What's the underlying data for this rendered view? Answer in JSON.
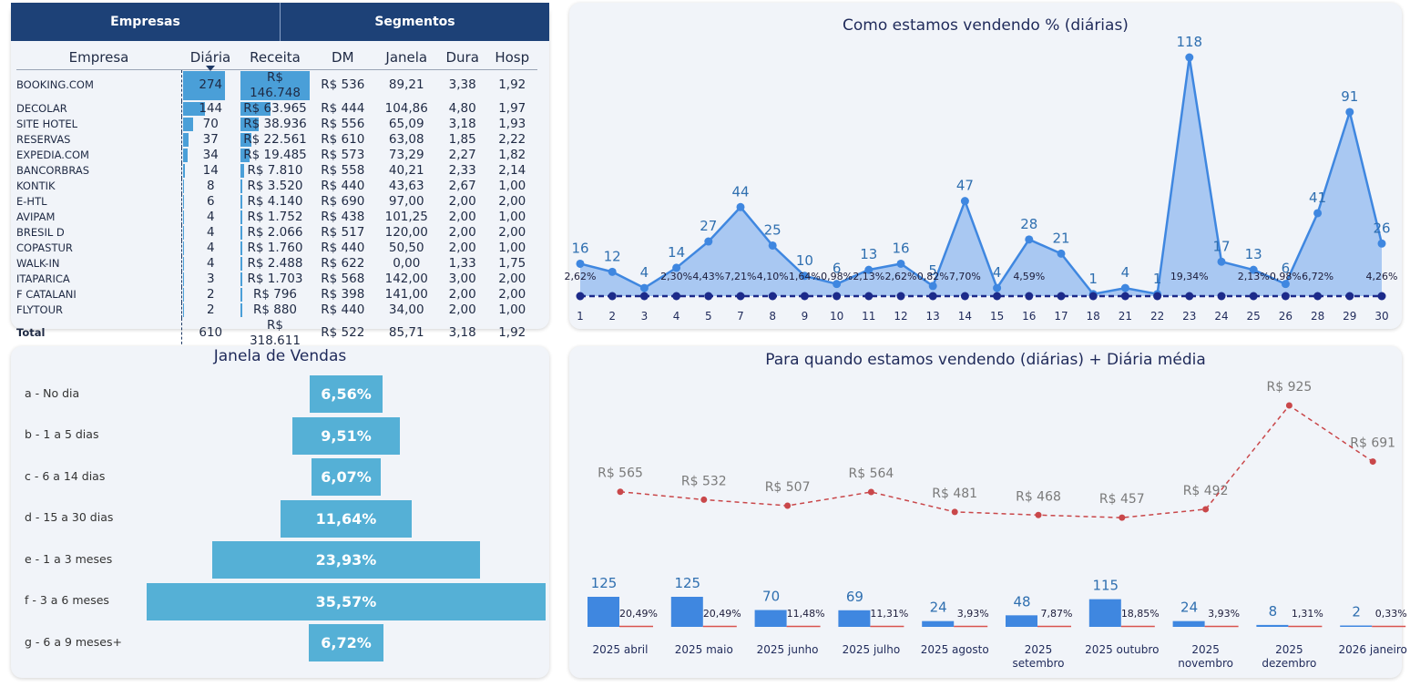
{
  "tabs": [
    "Empresas",
    "Segmentos"
  ],
  "table": {
    "columns": [
      "Empresa",
      "Diária",
      "Receita",
      "DM",
      "Janela",
      "Dura",
      "Hosp"
    ],
    "rows": [
      {
        "empresa": "BOOKING.COM",
        "diaria": "274",
        "receita": "R$ 146.748",
        "dm": "R$ 536",
        "janela": "89,21",
        "dura": "3,38",
        "hosp": "1,92",
        "diaria_value": 274,
        "receita_value": 146748
      },
      {
        "empresa": "DECOLAR",
        "diaria": "144",
        "receita": "R$ 63.965",
        "dm": "R$ 444",
        "janela": "104,86",
        "dura": "4,80",
        "hosp": "1,97",
        "diaria_value": 144,
        "receita_value": 63965
      },
      {
        "empresa": "SITE HOTEL",
        "diaria": "70",
        "receita": "R$ 38.936",
        "dm": "R$ 556",
        "janela": "65,09",
        "dura": "3,18",
        "hosp": "1,93",
        "diaria_value": 70,
        "receita_value": 38936
      },
      {
        "empresa": "RESERVAS",
        "diaria": "37",
        "receita": "R$ 22.561",
        "dm": "R$ 610",
        "janela": "63,08",
        "dura": "1,85",
        "hosp": "2,22",
        "diaria_value": 37,
        "receita_value": 22561
      },
      {
        "empresa": "EXPEDIA.COM",
        "diaria": "34",
        "receita": "R$ 19.485",
        "dm": "R$ 573",
        "janela": "73,29",
        "dura": "2,27",
        "hosp": "1,82",
        "diaria_value": 34,
        "receita_value": 19485
      },
      {
        "empresa": "BANCORBRAS",
        "diaria": "14",
        "receita": "R$ 7.810",
        "dm": "R$ 558",
        "janela": "40,21",
        "dura": "2,33",
        "hosp": "2,14",
        "diaria_value": 14,
        "receita_value": 7810
      },
      {
        "empresa": "KONTIK",
        "diaria": "8",
        "receita": "R$ 3.520",
        "dm": "R$ 440",
        "janela": "43,63",
        "dura": "2,67",
        "hosp": "1,00",
        "diaria_value": 8,
        "receita_value": 3520
      },
      {
        "empresa": "E-HTL",
        "diaria": "6",
        "receita": "R$ 4.140",
        "dm": "R$ 690",
        "janela": "97,00",
        "dura": "2,00",
        "hosp": "2,00",
        "diaria_value": 6,
        "receita_value": 4140
      },
      {
        "empresa": "AVIPAM",
        "diaria": "4",
        "receita": "R$ 1.752",
        "dm": "R$ 438",
        "janela": "101,25",
        "dura": "2,00",
        "hosp": "1,00",
        "diaria_value": 4,
        "receita_value": 1752
      },
      {
        "empresa": "BRESIL D",
        "diaria": "4",
        "receita": "R$ 2.066",
        "dm": "R$ 517",
        "janela": "120,00",
        "dura": "2,00",
        "hosp": "2,00",
        "diaria_value": 4,
        "receita_value": 2066
      },
      {
        "empresa": "COPASTUR",
        "diaria": "4",
        "receita": "R$ 1.760",
        "dm": "R$ 440",
        "janela": "50,50",
        "dura": "2,00",
        "hosp": "1,00",
        "diaria_value": 4,
        "receita_value": 1760
      },
      {
        "empresa": "WALK-IN",
        "diaria": "4",
        "receita": "R$ 2.488",
        "dm": "R$ 622",
        "janela": "0,00",
        "dura": "1,33",
        "hosp": "1,75",
        "diaria_value": 4,
        "receita_value": 2488
      },
      {
        "empresa": "ITAPARICA",
        "diaria": "3",
        "receita": "R$ 1.703",
        "dm": "R$ 568",
        "janela": "142,00",
        "dura": "3,00",
        "hosp": "2,00",
        "diaria_value": 3,
        "receita_value": 1703
      },
      {
        "empresa": "F CATALANI",
        "diaria": "2",
        "receita": "R$ 796",
        "dm": "R$ 398",
        "janela": "141,00",
        "dura": "2,00",
        "hosp": "2,00",
        "diaria_value": 2,
        "receita_value": 796
      },
      {
        "empresa": "FLYTOUR",
        "diaria": "2",
        "receita": "R$ 880",
        "dm": "R$ 440",
        "janela": "34,00",
        "dura": "2,00",
        "hosp": "1,00",
        "diaria_value": 2,
        "receita_value": 880
      }
    ],
    "total": {
      "empresa": "Total",
      "diaria": "610",
      "receita": "R$ 318.611",
      "dm": "R$ 522",
      "janela": "85,71",
      "dura": "3,18",
      "hosp": "1,92"
    }
  },
  "chart_data": [
    {
      "type": "area",
      "title": "Como estamos vendendo % (diárias)",
      "categories": [
        "1",
        "2",
        "3",
        "4",
        "5",
        "7",
        "8",
        "9",
        "10",
        "11",
        "12",
        "13",
        "14",
        "15",
        "16",
        "17",
        "18",
        "21",
        "22",
        "23",
        "24",
        "25",
        "26",
        "28",
        "29",
        "30"
      ],
      "series": [
        {
          "values": [
            16,
            12,
            4,
            14,
            27,
            44,
            25,
            10,
            6,
            13,
            16,
            5,
            47,
            4,
            28,
            21,
            1,
            4,
            1,
            118,
            17,
            13,
            6,
            41,
            91,
            26
          ],
          "labels": [
            "16",
            "12",
            "4",
            "14",
            "27",
            "44",
            "25",
            "10",
            "6",
            "13",
            "16",
            "5",
            "47",
            "4",
            "28",
            "21",
            "1",
            "4",
            "1",
            "118",
            "17",
            "13",
            "6",
            "41",
            "91",
            "26"
          ],
          "color": "#3f87e0"
        },
        {
          "values": [
            2.62,
            null,
            null,
            2.3,
            4.43,
            7.21,
            4.1,
            1.64,
            0.98,
            2.13,
            2.62,
            0.82,
            7.7,
            null,
            4.59,
            null,
            null,
            null,
            null,
            19.34,
            null,
            2.13,
            0.98,
            6.72,
            null,
            4.26
          ],
          "labels": [
            "2,62%",
            "",
            "",
            "2,30%",
            "4,43%",
            "7,21%",
            "4,10%",
            "1,64%",
            "0,98%",
            "2,13%",
            "2,62%",
            "0,82%",
            "7,70%",
            "",
            "4,59%",
            "",
            "",
            "",
            "",
            "19,34%",
            "",
            "2,13%",
            "0,98%",
            "6,72%",
            "",
            "4,26%"
          ],
          "color": "#1c2a8a"
        }
      ],
      "ylim": [
        0,
        118
      ]
    },
    {
      "type": "bar",
      "title": "Janela de Vendas",
      "categories": [
        "a - No dia",
        "b - 1 a 5 dias",
        "c - 6 a 14 dias",
        "d - 15 a 30 dias",
        "e - 1 a 3 meses",
        "f - 3 a 6 meses",
        "g - 6 a 9 meses+"
      ],
      "values": [
        6.56,
        9.51,
        6.07,
        11.64,
        23.93,
        35.57,
        6.72
      ],
      "labels": [
        "6,56%",
        "9,51%",
        "6,07%",
        "11,64%",
        "23,93%",
        "35,57%",
        "6,72%"
      ],
      "color": "#55b0d6"
    },
    {
      "type": "bar",
      "title": "Para quando estamos vendendo (diárias) + Diária média",
      "categories": [
        "2025 abril",
        "2025 maio",
        "2025 junho",
        "2025 julho",
        "2025 agosto",
        "2025 setembro",
        "2025 outubro",
        "2025 novembro",
        "2025 dezembro",
        "2026 janeiro"
      ],
      "series": [
        {
          "values": [
            125,
            125,
            70,
            69,
            24,
            48,
            115,
            24,
            8,
            2
          ],
          "labels": [
            "125",
            "125",
            "70",
            "69",
            "24",
            "48",
            "115",
            "24",
            "8",
            "2"
          ],
          "color": "#3f87e0"
        },
        {
          "values": [
            20.49,
            20.49,
            11.48,
            11.31,
            3.93,
            7.87,
            18.85,
            3.93,
            1.31,
            0.33
          ],
          "labels": [
            "20,49%",
            "20,49%",
            "11,48%",
            "11,31%",
            "3,93%",
            "7,87%",
            "18,85%",
            "3,93%",
            "1,31%",
            "0,33%"
          ],
          "color": "#d9534f"
        },
        {
          "type": "line",
          "values": [
            565,
            532,
            507,
            564,
            481,
            468,
            457,
            492,
            925,
            691
          ],
          "labels": [
            "R$ 565",
            "R$ 532",
            "R$ 507",
            "R$ 564",
            "R$ 481",
            "R$ 468",
            "R$ 457",
            "R$ 492",
            "R$ 925",
            "R$ 691"
          ],
          "color": "#c9474a"
        }
      ]
    }
  ]
}
